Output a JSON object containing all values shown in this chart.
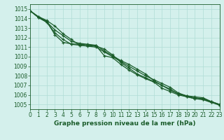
{
  "title": "Graphe pression niveau de la mer (hPa)",
  "xlabel": "Graphe pression niveau de la mer (hPa)",
  "xlim": [
    0,
    23
  ],
  "ylim": [
    1004.5,
    1015.5
  ],
  "yticks": [
    1005,
    1006,
    1007,
    1008,
    1009,
    1010,
    1011,
    1012,
    1013,
    1014,
    1015
  ],
  "xticks": [
    0,
    1,
    2,
    3,
    4,
    5,
    6,
    7,
    8,
    9,
    10,
    11,
    12,
    13,
    14,
    15,
    16,
    17,
    18,
    19,
    20,
    21,
    22,
    23
  ],
  "background_color": "#d4f0ec",
  "grid_color": "#b0ddd6",
  "line_color": "#1a5c2a",
  "series": [
    [
      1014.8,
      1014.2,
      1013.8,
      1013.2,
      1012.4,
      1011.8,
      1011.2,
      1011.1,
      1011.0,
      1010.5,
      1010.0,
      1009.5,
      1009.0,
      1008.5,
      1008.0,
      1007.6,
      1007.2,
      1006.8,
      1006.2,
      1005.9,
      1005.8,
      1005.7,
      1005.3,
      1005.0
    ],
    [
      1014.8,
      1014.1,
      1013.6,
      1012.5,
      1011.8,
      1011.3,
      1011.2,
      1011.15,
      1011.1,
      1010.8,
      1010.2,
      1009.4,
      1008.8,
      1008.2,
      1007.8,
      1007.4,
      1007.0,
      1006.5,
      1006.1,
      1005.85,
      1005.6,
      1005.5,
      1005.2,
      1005.0
    ],
    [
      1014.8,
      1014.15,
      1013.7,
      1012.3,
      1011.5,
      1011.35,
      1011.3,
      1011.25,
      1011.15,
      1010.1,
      1009.9,
      1009.2,
      1008.6,
      1008.1,
      1007.7,
      1007.35,
      1006.7,
      1006.35,
      1006.0,
      1005.8,
      1005.6,
      1005.55,
      1005.25,
      1004.9
    ],
    [
      1014.8,
      1014.1,
      1013.65,
      1012.8,
      1012.2,
      1011.6,
      1011.4,
      1011.3,
      1011.2,
      1010.6,
      1010.1,
      1009.6,
      1009.2,
      1008.7,
      1008.2,
      1007.5,
      1007.0,
      1006.6,
      1006.1,
      1005.9,
      1005.7,
      1005.6,
      1005.3,
      1005.0
    ]
  ],
  "tick_fontsize": 5.5,
  "label_fontsize": 6.5,
  "line_width": 0.9,
  "marker_size": 3.0
}
